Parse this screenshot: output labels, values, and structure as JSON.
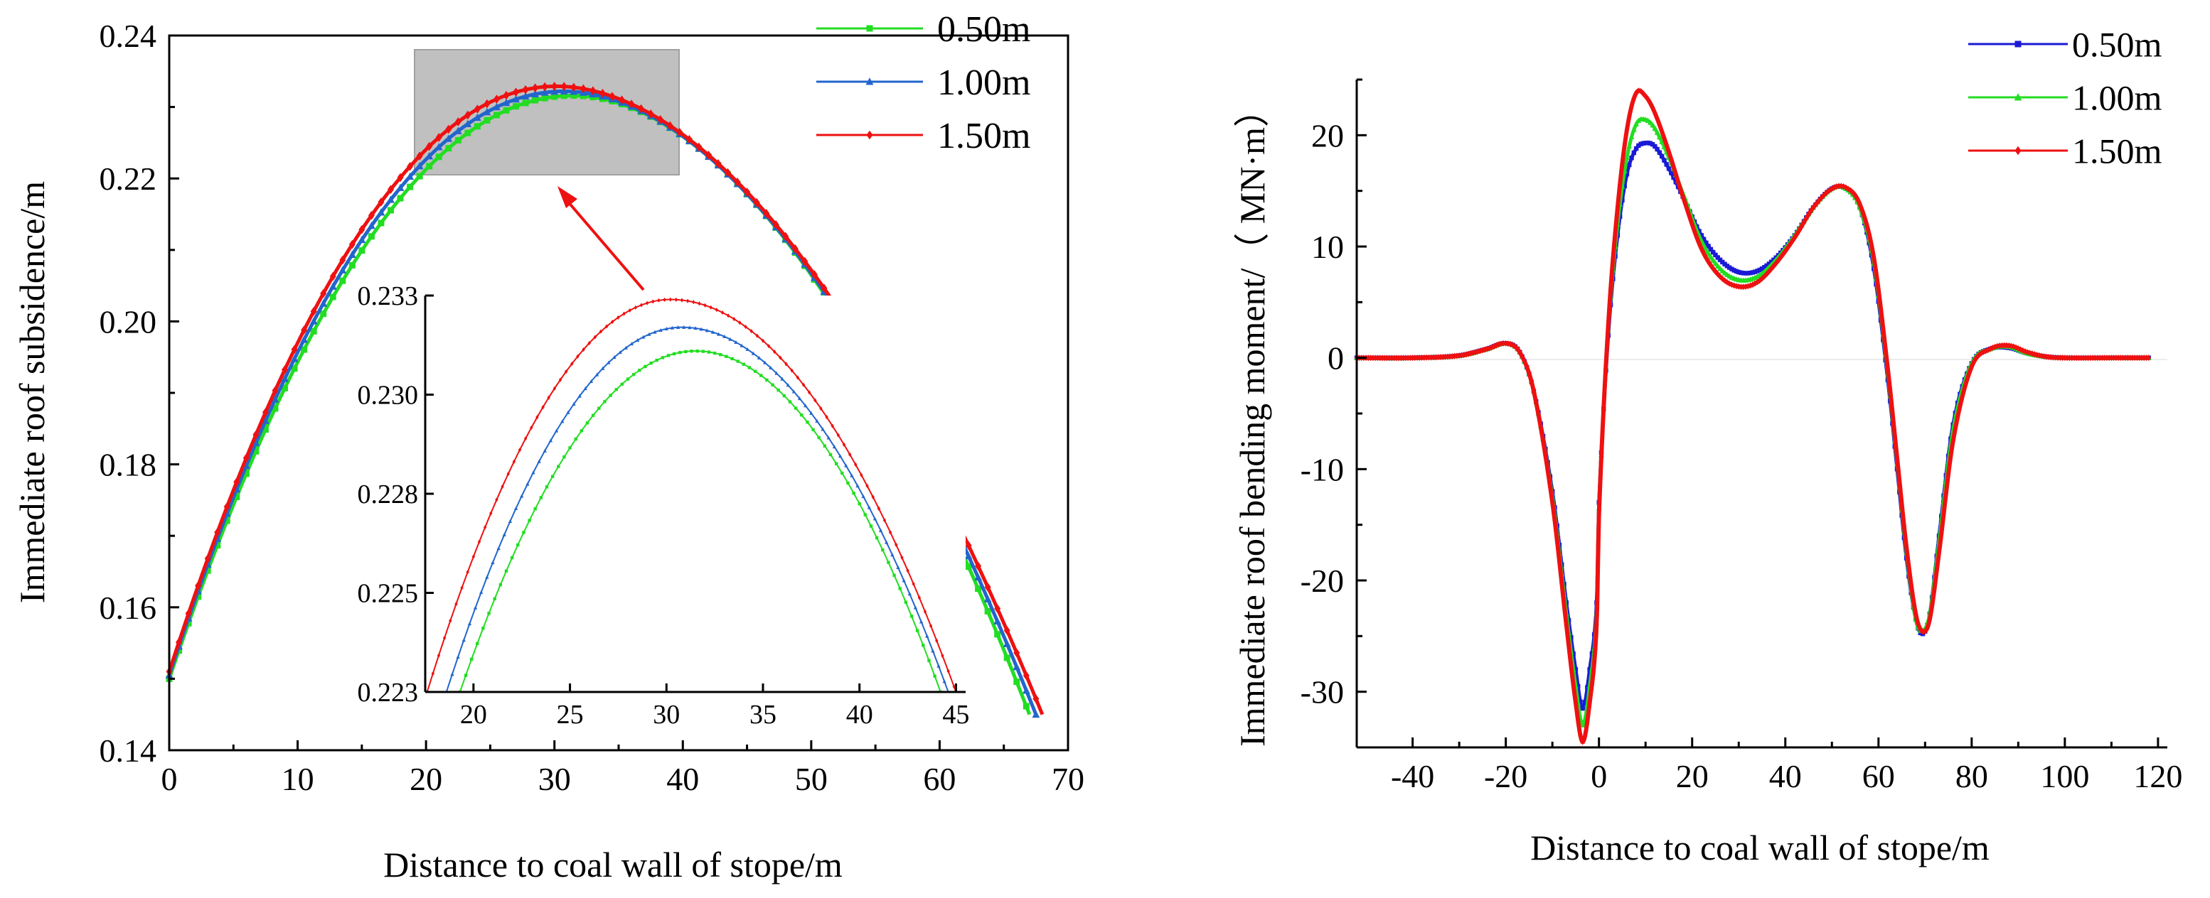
{
  "chart_data": [
    {
      "type": "line",
      "id": "left",
      "title": "",
      "xlabel": "Distance to coal wall of stope/m",
      "ylabel": "Immediate roof subsidence/m",
      "xlim": [
        0,
        70
      ],
      "ylim": [
        0.14,
        0.24
      ],
      "xticks": [
        0,
        10,
        20,
        30,
        40,
        50,
        60,
        70
      ],
      "yticks": [
        0.14,
        0.16,
        0.18,
        0.2,
        0.22,
        0.24
      ],
      "xtick_labels": [
        "0",
        "10",
        "20",
        "30",
        "40",
        "50",
        "60",
        "70"
      ],
      "ytick_labels": [
        "0.14",
        "0.16",
        "0.18",
        "0.20",
        "0.22",
        "0.24"
      ],
      "grid": false,
      "legend_position": "top-right",
      "series": [
        {
          "name": "0.50m",
          "color": "#22dd22",
          "marker": "square",
          "peak_x": 31.5,
          "peak_y": 0.2316,
          "x_end": 67.0,
          "y_start": 0.15,
          "y_end": 0.145
        },
        {
          "name": "1.00m",
          "color": "#2266cc",
          "marker": "triangle",
          "peak_x": 30.8,
          "peak_y": 0.2322,
          "x_end": 67.5,
          "y_start": 0.1505,
          "y_end": 0.145
        },
        {
          "name": "1.50m",
          "color": "#ee1111",
          "marker": "diamond",
          "peak_x": 30.2,
          "peak_y": 0.2329,
          "x_end": 68.0,
          "y_start": 0.151,
          "y_end": 0.145
        }
      ],
      "highlight_box": {
        "x_range": [
          20,
          40.5
        ],
        "y_range": [
          0.2207,
          0.2385
        ]
      },
      "inset": {
        "xlim": [
          17.5,
          45.5
        ],
        "ylim": [
          0.223,
          0.233
        ],
        "xticks": [
          20,
          25,
          30,
          35,
          40,
          45
        ],
        "yticks": [
          0.223,
          0.2255,
          0.228,
          0.2305,
          0.233
        ],
        "xtick_labels": [
          "20",
          "25",
          "30",
          "35",
          "40",
          "45"
        ],
        "ytick_labels": [
          "0.223",
          "0.225",
          "0.228",
          "0.230",
          "0.233"
        ]
      }
    },
    {
      "type": "line",
      "id": "right",
      "title": "",
      "xlabel": "Distance to coal wall of stope/m",
      "ylabel": "Immediate roof bending moment/（ MN·m）",
      "xlim": [
        -52,
        122
      ],
      "ylim": [
        -35,
        25
      ],
      "xticks": [
        -40,
        -20,
        0,
        20,
        40,
        60,
        80,
        100,
        120
      ],
      "yticks": [
        -30,
        -20,
        -10,
        0,
        10,
        20
      ],
      "xtick_labels": [
        "-40",
        "-20",
        "0",
        "20",
        "40",
        "60",
        "80",
        "100",
        "120"
      ],
      "ytick_labels": [
        "-30",
        "-20",
        "-10",
        "0",
        "10",
        "20"
      ],
      "grid": false,
      "legend_position": "top-right",
      "series": [
        {
          "name": "0.50m",
          "color": "#1a1ad6",
          "marker": "square",
          "x": [
            -52,
            -40,
            -30,
            -24,
            -20,
            -17,
            -14,
            -10,
            -7,
            -5,
            -3.5,
            -2,
            -0.5,
            0,
            2,
            4,
            6,
            8,
            10,
            12,
            15,
            18,
            22,
            26,
            30,
            34,
            38,
            42,
            46,
            50,
            53,
            56,
            59,
            62,
            64,
            66,
            68,
            69.5,
            71,
            73,
            76,
            80,
            84,
            88,
            92,
            96,
            100,
            110,
            118
          ],
          "y": [
            0,
            0,
            0.2,
            0.8,
            1.3,
            0.5,
            -3,
            -12,
            -22,
            -28,
            -31.5,
            -28,
            -22,
            -13,
            2,
            11,
            16.5,
            18.8,
            19.3,
            19,
            17,
            14.5,
            11,
            8.8,
            7.7,
            7.8,
            9,
            11,
            13.5,
            15.2,
            15.2,
            13.5,
            8,
            -2,
            -10,
            -18,
            -23.5,
            -24.8,
            -23,
            -16,
            -6,
            -0.5,
            0.8,
            0.9,
            0.4,
            0.1,
            0,
            0,
            0
          ]
        },
        {
          "name": "1.00m",
          "color": "#22dd22",
          "marker": "triangle",
          "x": [
            -52,
            -40,
            -30,
            -24,
            -20,
            -17,
            -14,
            -10,
            -7,
            -5,
            -3.5,
            -2,
            -0.5,
            0,
            2,
            4,
            6,
            8,
            10,
            12,
            15,
            18,
            22,
            26,
            30,
            34,
            38,
            42,
            46,
            50,
            53,
            56,
            59,
            62,
            64,
            66,
            68,
            69.5,
            71,
            73,
            76,
            80,
            84,
            88,
            92,
            96,
            100,
            110,
            118
          ],
          "y": [
            0,
            0,
            0.2,
            0.8,
            1.3,
            0.5,
            -3,
            -12.5,
            -23,
            -29.5,
            -33,
            -29.5,
            -23,
            -13.5,
            2.5,
            12,
            18,
            21,
            21.4,
            20.6,
            18,
            14.8,
            10.5,
            8,
            7,
            7.3,
            8.8,
            11,
            13.5,
            15.2,
            15.2,
            13.5,
            8.5,
            -1.5,
            -9.5,
            -17.5,
            -23.5,
            -24.5,
            -23,
            -16.5,
            -6.5,
            -0.5,
            0.8,
            1,
            0.4,
            0.1,
            0,
            0,
            0
          ]
        },
        {
          "name": "1.50m",
          "color": "#ee1111",
          "marker": "diamond",
          "x": [
            -52,
            -40,
            -30,
            -24,
            -20,
            -17,
            -14,
            -10,
            -7,
            -5,
            -3.5,
            -2,
            -0.5,
            0,
            2,
            4,
            6,
            8,
            10,
            12,
            15,
            18,
            22,
            26,
            30,
            34,
            38,
            42,
            46,
            50,
            53,
            56,
            59,
            62,
            64,
            66,
            68,
            69.5,
            71,
            73,
            76,
            80,
            84,
            88,
            92,
            96,
            100,
            110,
            118
          ],
          "y": [
            0,
            0,
            0.2,
            0.8,
            1.3,
            0.5,
            -3,
            -13,
            -24,
            -31,
            -34.5,
            -31,
            -24,
            -14,
            3,
            13.5,
            20.5,
            23.8,
            23.5,
            22,
            18.5,
            14.5,
            9.8,
            7.3,
            6.4,
            6.8,
            8.5,
            10.8,
            13.5,
            15.2,
            15.3,
            13.8,
            9,
            -1,
            -9,
            -17,
            -23,
            -24.6,
            -23.5,
            -17.5,
            -7.5,
            -0.8,
            0.8,
            1.1,
            0.5,
            0.1,
            0,
            0,
            0
          ]
        }
      ]
    }
  ]
}
